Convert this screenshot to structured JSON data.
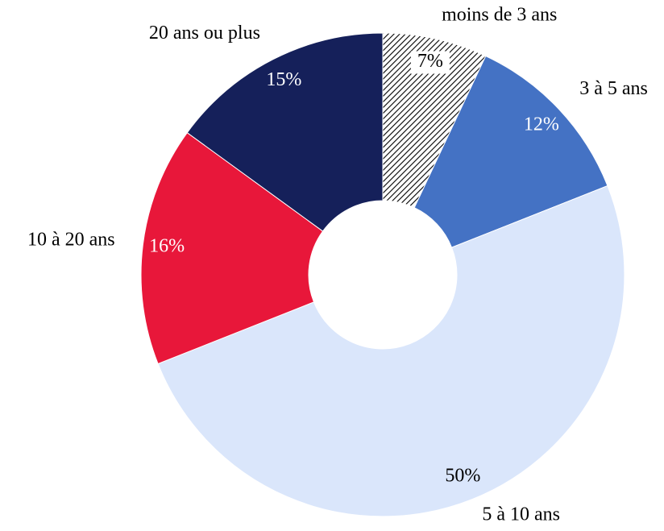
{
  "chart_data": {
    "type": "donut",
    "categories": [
      "moins de 3 ans",
      "3 à 5 ans",
      "5 à 10 ans",
      "10 à 20 ans",
      "20 ans ou plus"
    ],
    "values": [
      7,
      12,
      50,
      16,
      15
    ],
    "value_labels": [
      "7%",
      "12%",
      "50%",
      "16%",
      "15%"
    ],
    "colors": [
      "#000000",
      "#4472c4",
      "#dae6fb",
      "#e8173a",
      "#15205a"
    ],
    "hatched": [
      true,
      false,
      false,
      false,
      false
    ]
  }
}
